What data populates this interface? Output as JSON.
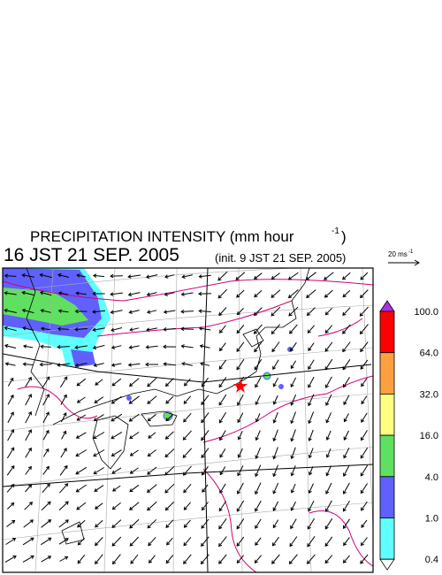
{
  "header": {
    "title": "PRECIPITATION INTENSITY (mm hour",
    "title_superscript": "-1",
    "title_close": ")",
    "valid_time": "16 JST 21 SEP. 2005",
    "init_time": "(init. 9 JST 21 SEP. 2005)"
  },
  "reference_vector": {
    "label": "20 ms",
    "superscript": "-1"
  },
  "legend": {
    "levels": [
      {
        "value": 100,
        "label": "100.0"
      },
      {
        "value": 64,
        "label": "64.0"
      },
      {
        "value": 32,
        "label": "32.0"
      },
      {
        "value": 16,
        "label": "16.0"
      },
      {
        "value": 4,
        "label": "4.0"
      },
      {
        "value": 1,
        "label": "1.0"
      },
      {
        "value": 0.4,
        "label": "0.4"
      }
    ],
    "colors": [
      "#ff0000",
      "#ffa040",
      "#ffff80",
      "#60e060",
      "#6060ff",
      "#60ffff"
    ],
    "over_color": "#b030e0",
    "under_color": "#ffffff"
  }
}
